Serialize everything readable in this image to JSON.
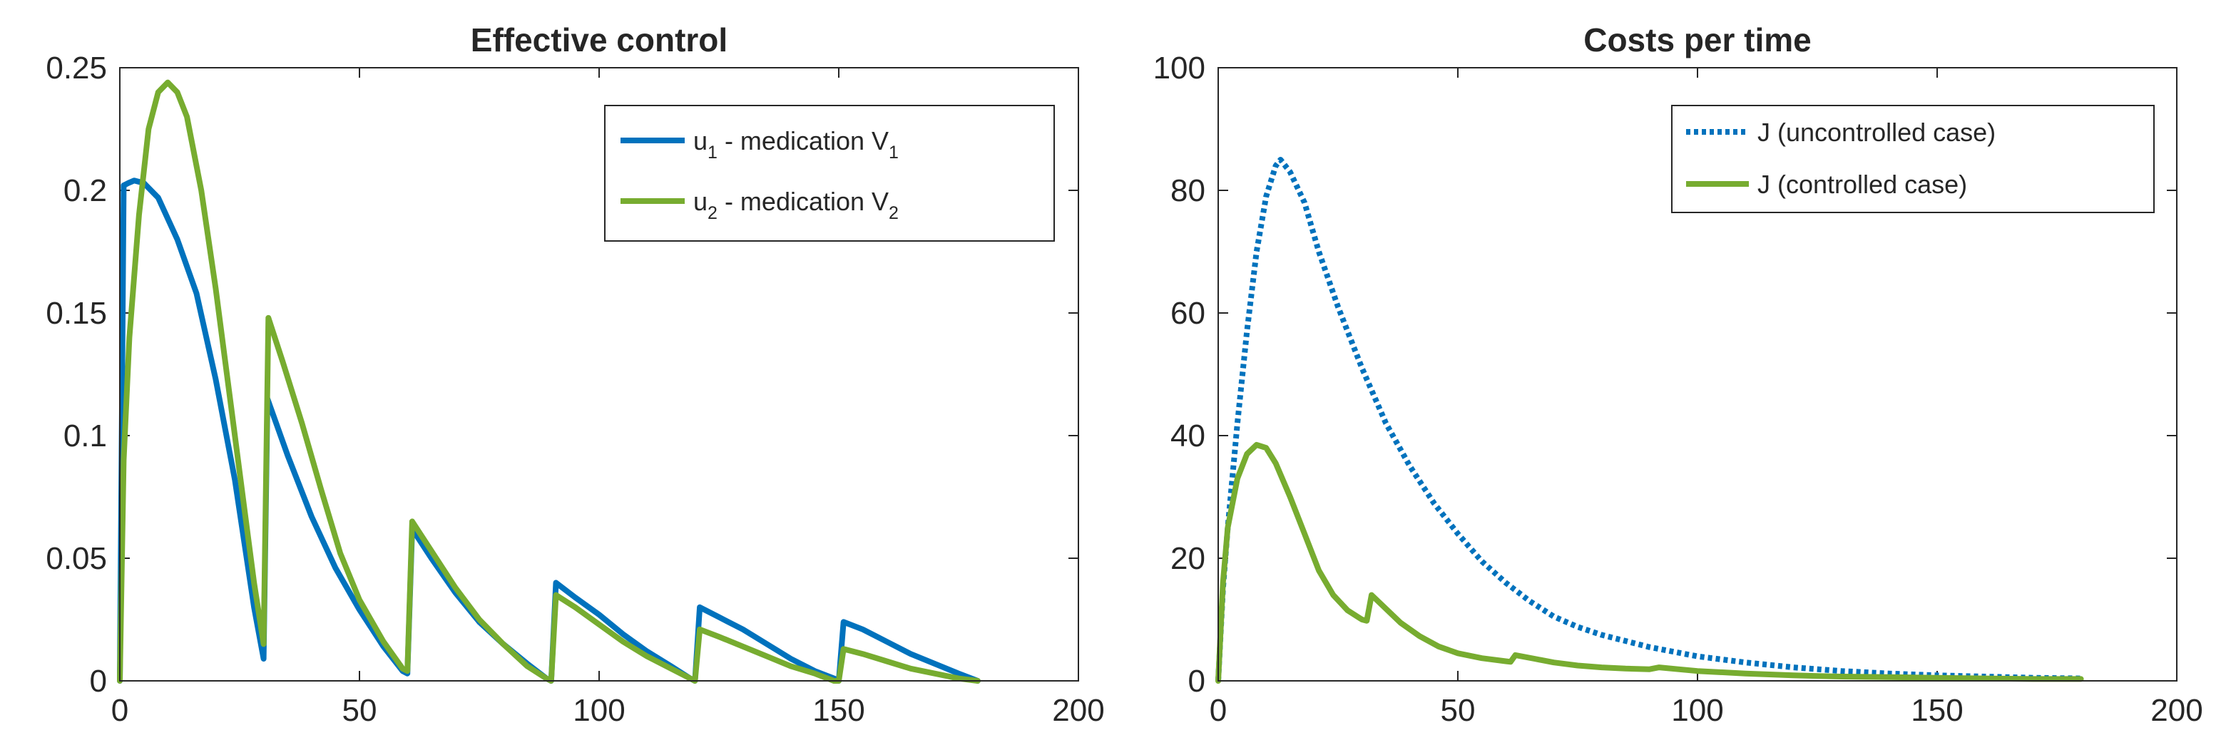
{
  "chart_data": [
    {
      "type": "line",
      "title": "Effective control",
      "xlabel": "",
      "ylabel": "",
      "xlim": [
        0,
        200
      ],
      "ylim": [
        0,
        0.25
      ],
      "xticks": [
        "0",
        "50",
        "100",
        "150",
        "200"
      ],
      "yticks": [
        "0",
        "0.05",
        "0.1",
        "0.15",
        "0.2",
        "0.25"
      ],
      "legend_position": "top-right",
      "series": [
        {
          "name": "u1 - medication V1",
          "legend": {
            "var": "u",
            "var_sub": "1",
            "mid": " - medication V",
            "end_sub": "1"
          },
          "color": "#0072BD",
          "style": "solid",
          "points": [
            [
              0,
              0
            ],
            [
              0.8,
              0.202
            ],
            [
              1.8,
              0.203
            ],
            [
              3,
              0.204
            ],
            [
              5,
              0.203
            ],
            [
              8,
              0.197
            ],
            [
              12,
              0.18
            ],
            [
              16,
              0.158
            ],
            [
              20,
              0.123
            ],
            [
              24,
              0.082
            ],
            [
              28,
              0.03
            ],
            [
              30,
              0.009
            ],
            [
              30.8,
              0.115
            ],
            [
              35,
              0.092
            ],
            [
              40,
              0.067
            ],
            [
              45,
              0.046
            ],
            [
              50,
              0.029
            ],
            [
              55,
              0.014
            ],
            [
              59,
              0.004
            ],
            [
              60,
              0.003
            ],
            [
              61,
              0.062
            ],
            [
              65,
              0.05
            ],
            [
              70,
              0.036
            ],
            [
              75,
              0.024
            ],
            [
              80,
              0.015
            ],
            [
              85,
              0.007
            ],
            [
              89,
              0.001
            ],
            [
              90,
              0
            ],
            [
              91,
              0.04
            ],
            [
              95,
              0.034
            ],
            [
              100,
              0.027
            ],
            [
              105,
              0.019
            ],
            [
              110,
              0.012
            ],
            [
              115,
              0.006
            ],
            [
              119,
              0.001
            ],
            [
              120,
              0
            ],
            [
              121,
              0.03
            ],
            [
              125,
              0.026
            ],
            [
              130,
              0.021
            ],
            [
              135,
              0.015
            ],
            [
              140,
              0.009
            ],
            [
              145,
              0.004
            ],
            [
              149,
              0.001
            ],
            [
              150,
              0
            ],
            [
              151,
              0.024
            ],
            [
              155,
              0.021
            ],
            [
              160,
              0.016
            ],
            [
              165,
              0.011
            ],
            [
              170,
              0.007
            ],
            [
              175,
              0.003
            ],
            [
              179,
              0
            ]
          ]
        },
        {
          "name": "u2 - medication V2",
          "legend": {
            "var": "u",
            "var_sub": "2",
            "mid": " - medication V",
            "end_sub": "2"
          },
          "color": "#77AC30",
          "style": "solid",
          "points": [
            [
              0,
              0
            ],
            [
              0.8,
              0.09
            ],
            [
              2,
              0.14
            ],
            [
              4,
              0.19
            ],
            [
              6,
              0.225
            ],
            [
              8,
              0.24
            ],
            [
              10,
              0.244
            ],
            [
              12,
              0.24
            ],
            [
              14,
              0.23
            ],
            [
              17,
              0.2
            ],
            [
              20,
              0.16
            ],
            [
              23,
              0.115
            ],
            [
              26,
              0.07
            ],
            [
              28,
              0.04
            ],
            [
              30,
              0.015
            ],
            [
              31,
              0.148
            ],
            [
              34,
              0.13
            ],
            [
              38,
              0.105
            ],
            [
              42,
              0.078
            ],
            [
              46,
              0.052
            ],
            [
              50,
              0.033
            ],
            [
              55,
              0.016
            ],
            [
              59,
              0.005
            ],
            [
              60,
              0.004
            ],
            [
              61,
              0.065
            ],
            [
              65,
              0.053
            ],
            [
              70,
              0.038
            ],
            [
              75,
              0.025
            ],
            [
              80,
              0.015
            ],
            [
              85,
              0.006
            ],
            [
              89,
              0.001
            ],
            [
              90,
              0
            ],
            [
              91,
              0.035
            ],
            [
              95,
              0.03
            ],
            [
              100,
              0.023
            ],
            [
              105,
              0.016
            ],
            [
              110,
              0.01
            ],
            [
              115,
              0.005
            ],
            [
              119,
              0.001
            ],
            [
              120,
              0
            ],
            [
              121,
              0.021
            ],
            [
              125,
              0.018
            ],
            [
              130,
              0.014
            ],
            [
              135,
              0.01
            ],
            [
              140,
              0.006
            ],
            [
              145,
              0.003
            ],
            [
              149,
              0
            ],
            [
              150,
              0
            ],
            [
              151,
              0.013
            ],
            [
              155,
              0.011
            ],
            [
              160,
              0.008
            ],
            [
              165,
              0.005
            ],
            [
              170,
              0.003
            ],
            [
              175,
              0.001
            ],
            [
              179,
              0
            ]
          ]
        }
      ]
    },
    {
      "type": "line",
      "title": "Costs per time",
      "xlabel": "",
      "ylabel": "",
      "xlim": [
        0,
        200
      ],
      "ylim": [
        0,
        100
      ],
      "xticks": [
        "0",
        "50",
        "100",
        "150",
        "200"
      ],
      "yticks": [
        "0",
        "20",
        "40",
        "60",
        "80",
        "100"
      ],
      "legend_position": "top-right",
      "series": [
        {
          "name": "J (uncontrolled case)",
          "legend": {
            "text": "J (uncontrolled case)"
          },
          "color": "#0072BD",
          "style": "dotted",
          "points": [
            [
              0,
              0
            ],
            [
              1,
              15
            ],
            [
              2,
              25
            ],
            [
              4,
              42
            ],
            [
              6,
              57
            ],
            [
              8,
              70
            ],
            [
              10,
              79
            ],
            [
              12,
              84
            ],
            [
              13,
              85
            ],
            [
              15,
              83
            ],
            [
              18,
              78
            ],
            [
              21,
              70
            ],
            [
              25,
              61
            ],
            [
              30,
              51
            ],
            [
              35,
              42
            ],
            [
              40,
              35
            ],
            [
              45,
              29
            ],
            [
              50,
              24
            ],
            [
              55,
              19.5
            ],
            [
              60,
              16
            ],
            [
              65,
              13
            ],
            [
              70,
              10.5
            ],
            [
              75,
              8.8
            ],
            [
              80,
              7.5
            ],
            [
              90,
              5.5
            ],
            [
              100,
              4
            ],
            [
              110,
              3
            ],
            [
              120,
              2.2
            ],
            [
              130,
              1.6
            ],
            [
              140,
              1.2
            ],
            [
              150,
              0.9
            ],
            [
              160,
              0.7
            ],
            [
              170,
              0.5
            ],
            [
              180,
              0.4
            ]
          ]
        },
        {
          "name": "J (controlled case)",
          "legend": {
            "text": "J (controlled case)"
          },
          "color": "#77AC30",
          "style": "solid",
          "points": [
            [
              0,
              0
            ],
            [
              1,
              16
            ],
            [
              2,
              25
            ],
            [
              4,
              33
            ],
            [
              6,
              37
            ],
            [
              8,
              38.5
            ],
            [
              10,
              38
            ],
            [
              12,
              35.5
            ],
            [
              15,
              30
            ],
            [
              18,
              24
            ],
            [
              21,
              18
            ],
            [
              24,
              14
            ],
            [
              27,
              11.5
            ],
            [
              30,
              10
            ],
            [
              31,
              9.8
            ],
            [
              32,
              14
            ],
            [
              34,
              12.5
            ],
            [
              38,
              9.5
            ],
            [
              42,
              7.3
            ],
            [
              46,
              5.6
            ],
            [
              50,
              4.5
            ],
            [
              55,
              3.7
            ],
            [
              60,
              3.2
            ],
            [
              61,
              3.1
            ],
            [
              62,
              4.2
            ],
            [
              66,
              3.6
            ],
            [
              70,
              3.0
            ],
            [
              75,
              2.5
            ],
            [
              80,
              2.2
            ],
            [
              85,
              2.0
            ],
            [
              90,
              1.9
            ],
            [
              92,
              2.2
            ],
            [
              96,
              1.9
            ],
            [
              100,
              1.6
            ],
            [
              110,
              1.2
            ],
            [
              120,
              0.9
            ],
            [
              130,
              0.7
            ],
            [
              140,
              0.6
            ],
            [
              150,
              0.5
            ],
            [
              160,
              0.4
            ],
            [
              170,
              0.3
            ],
            [
              180,
              0.3
            ]
          ]
        }
      ]
    }
  ]
}
